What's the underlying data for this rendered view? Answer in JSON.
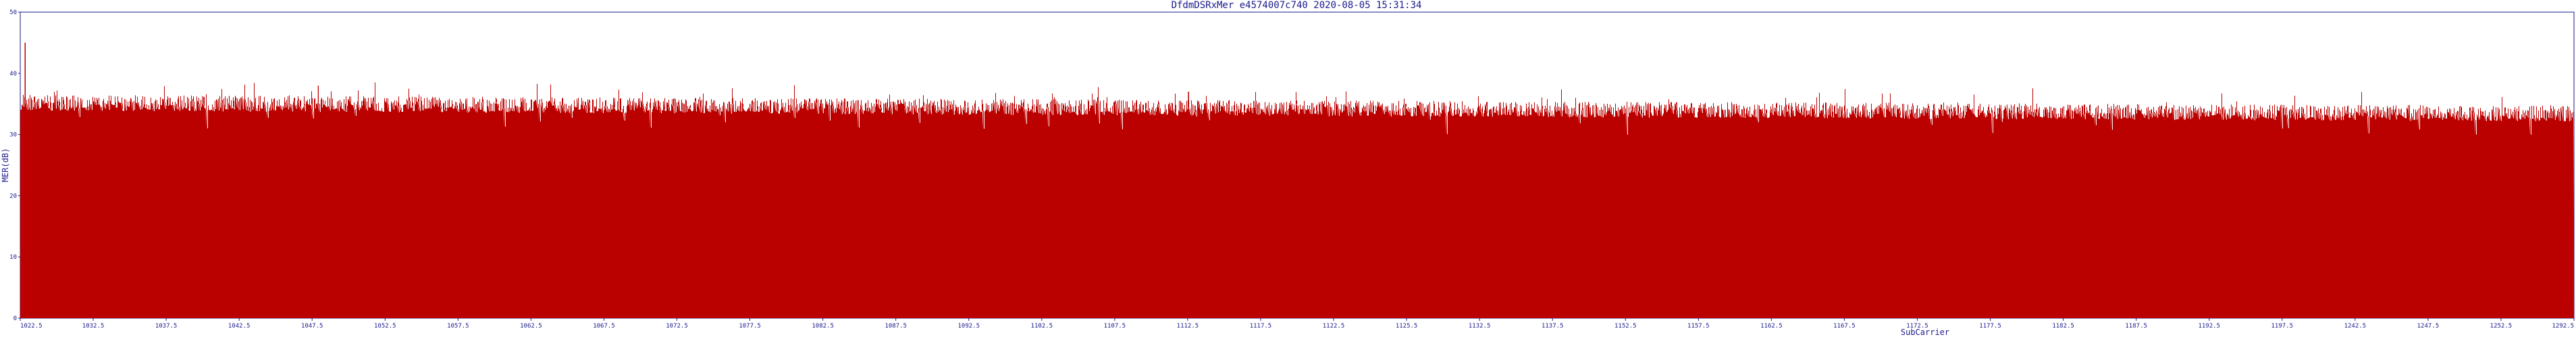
{
  "chart_data": {
    "type": "bar",
    "title": "DfdmDSRxMer e4574007c740 2020-08-05 15:31:34",
    "xlabel": "SubCarrier",
    "ylabel": "MER(dB)",
    "xlim": [
      1022.5,
      1292.5
    ],
    "ylim": [
      0,
      50
    ],
    "x_ticks": [
      "1022.5",
      "1032.5",
      "1037.5",
      "1042.5",
      "1047.5",
      "1052.5",
      "1057.5",
      "1062.5",
      "1067.5",
      "1072.5",
      "1077.5",
      "1082.5",
      "1087.5",
      "1092.5",
      "1102.5",
      "1107.5",
      "1112.5",
      "1117.5",
      "1122.5",
      "1125.5",
      "1132.5",
      "1137.5",
      "1152.5",
      "1157.5",
      "1162.5",
      "1167.5",
      "1172.5",
      "1177.5",
      "1182.5",
      "1187.5",
      "1192.5",
      "1197.5",
      "1242.5",
      "1247.5",
      "1252.5",
      "1292.5"
    ],
    "y_ticks": [
      "0",
      "10",
      "20",
      "30",
      "40",
      "50"
    ],
    "series": [
      {
        "color": "#bb0000",
        "typical_value_range": [
          32,
          37
        ],
        "mean_start": 35.2,
        "mean_end": 33.4,
        "notable_peaks": [
          {
            "x": 1023,
            "y": 45
          },
          {
            "x": 1054,
            "y": 38
          },
          {
            "x": 1146,
            "y": 37
          }
        ]
      }
    ],
    "grid": false,
    "legend": "none"
  }
}
